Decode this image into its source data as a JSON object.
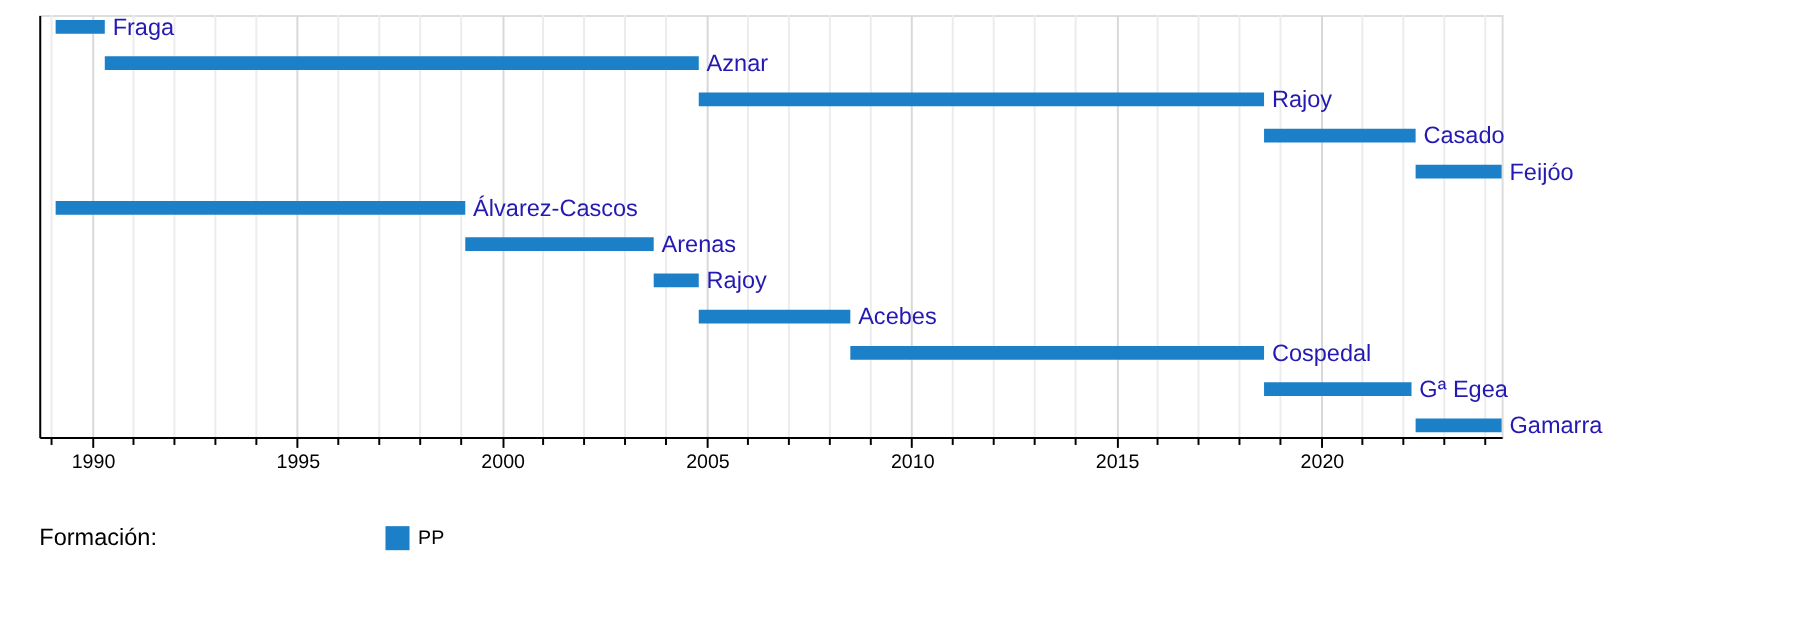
{
  "chart_data": {
    "type": "bar",
    "orientation": "horizontal",
    "categories": [
      "Fraga",
      "Aznar",
      "Rajoy",
      "Casado",
      "Feijóo",
      "Álvarez-Cascos",
      "Arenas",
      "Rajoy",
      "Acebes",
      "Cospedal",
      "Gª Egea",
      "Gamarra"
    ],
    "series": [
      {
        "name": "PP",
        "color": "#1b80c8",
        "base": [
          1989.1,
          1990.3,
          2004.8,
          2018.6,
          2022.3,
          1989.1,
          1999.1,
          2003.7,
          2004.8,
          2008.5,
          2018.6,
          2022.3
        ],
        "values": [
          1.2,
          14.5,
          13.8,
          3.7,
          2.1,
          10.0,
          4.6,
          1.1,
          3.7,
          10.1,
          3.6,
          2.1
        ]
      }
    ],
    "xlim": [
      1988.7,
      2024.4
    ],
    "xticks": [
      {
        "value": 1989,
        "label": null
      },
      1990,
      {
        "value": 1991,
        "label": null
      },
      {
        "value": 1992,
        "label": null
      },
      {
        "value": 1993,
        "label": null
      },
      {
        "value": 1994,
        "label": null
      },
      1995,
      {
        "value": 1996,
        "label": null
      },
      {
        "value": 1997,
        "label": null
      },
      {
        "value": 1998,
        "label": null
      },
      {
        "value": 1999,
        "label": null
      },
      2000,
      {
        "value": 2001,
        "label": null
      },
      {
        "value": 2002,
        "label": null
      },
      {
        "value": 2003,
        "label": null
      },
      {
        "value": 2004,
        "label": null
      },
      2005,
      {
        "value": 2006,
        "label": null
      },
      {
        "value": 2007,
        "label": null
      },
      {
        "value": 2008,
        "label": null
      },
      {
        "value": 2009,
        "label": null
      },
      2010,
      {
        "value": 2011,
        "label": null
      },
      {
        "value": 2012,
        "label": null
      },
      {
        "value": 2013,
        "label": null
      },
      {
        "value": 2014,
        "label": null
      },
      2015,
      {
        "value": 2016,
        "label": null
      },
      {
        "value": 2017,
        "label": null
      },
      {
        "value": 2018,
        "label": null
      },
      {
        "value": 2019,
        "label": null
      },
      2020,
      {
        "value": 2021,
        "label": null
      },
      {
        "value": 2022,
        "label": null
      },
      {
        "value": 2023,
        "label": null
      },
      {
        "value": 2024,
        "label": null
      }
    ],
    "legend_title": "Formación:",
    "legend": "bottom left",
    "grid": "x",
    "tick_labels": "x"
  }
}
